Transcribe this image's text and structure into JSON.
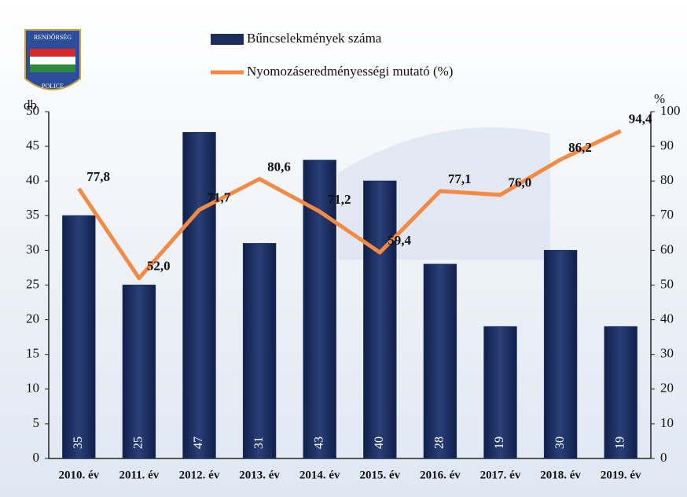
{
  "chart_data": {
    "type": "bar",
    "annotations": [
      "RENDŐRSÉG",
      "POLICE"
    ],
    "ylabel": "db",
    "y2label": "%",
    "categories": [
      "2010. év",
      "2011. év",
      "2012. év",
      "2013. év",
      "2014. év",
      "2015. év",
      "2016. év",
      "2017. év",
      "2018. év",
      "2019. év"
    ],
    "series": [
      {
        "name": "Bűncselekmények száma",
        "type": "bar",
        "color": "#1b2d5c",
        "values": [
          35,
          25,
          47,
          31,
          43,
          40,
          28,
          19,
          30,
          19
        ]
      },
      {
        "name": "Nyomozáseredményességi mutató (%)",
        "type": "line",
        "axis": "y2",
        "color": "#f58a45",
        "values": [
          77.8,
          52.0,
          71.7,
          80.6,
          71.2,
          59.4,
          77.1,
          76.0,
          86.2,
          94.4
        ],
        "value_labels": [
          "77,8",
          "52,0",
          "71,7",
          "80,6",
          "71,2",
          "59,4",
          "77,1",
          "76,0",
          "86,2",
          "94,4"
        ]
      }
    ],
    "ylim": [
      0,
      50
    ],
    "yticks": [
      0,
      5,
      10,
      15,
      20,
      25,
      30,
      35,
      40,
      45,
      50
    ],
    "y2lim": [
      0,
      100
    ],
    "y2ticks": [
      0,
      10,
      20,
      30,
      40,
      50,
      60,
      70,
      80,
      90,
      100
    ],
    "grid": false
  }
}
